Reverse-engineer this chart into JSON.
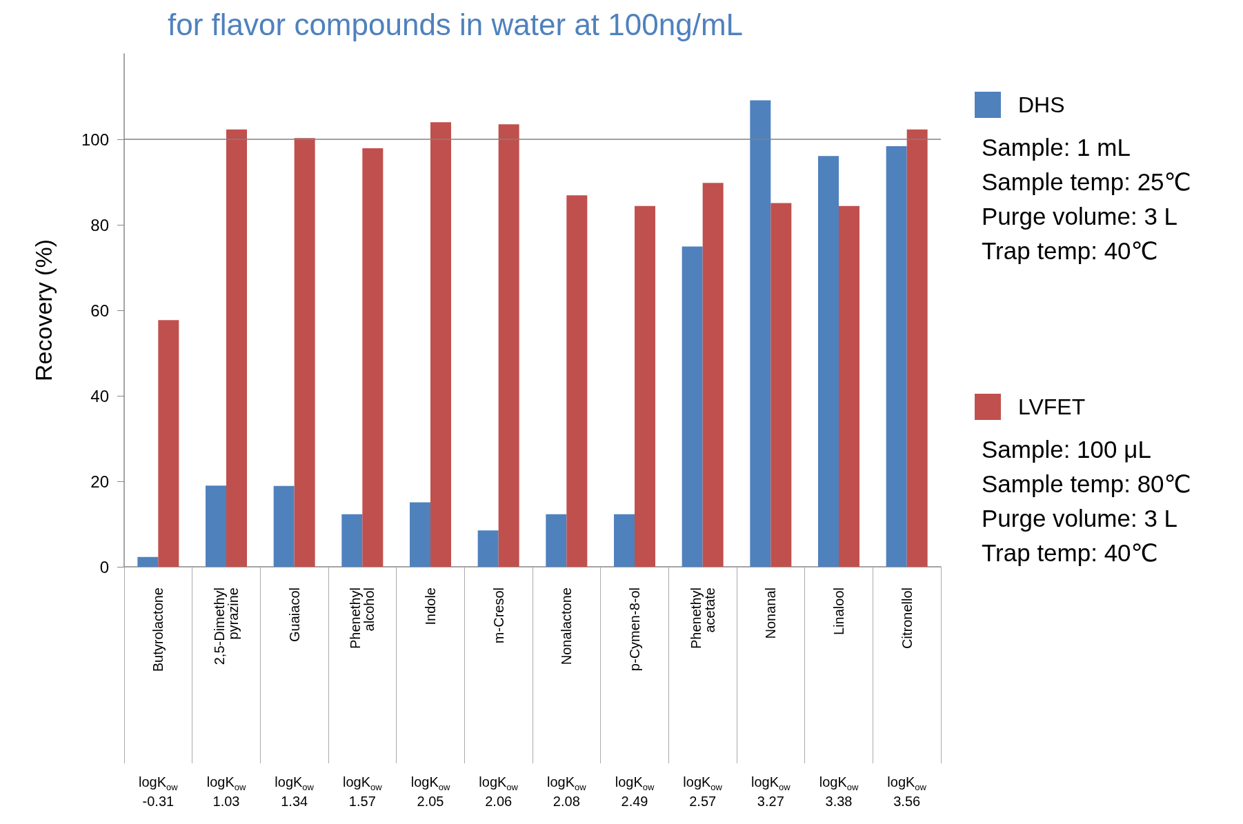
{
  "chart_data": {
    "type": "bar",
    "title": "for flavor compounds in water at 100ng/mL",
    "ylabel": "Recovery (%)",
    "categories": [
      "Butyrolactone",
      "2,5-Dimethyl pyrazine",
      "Guaiacol",
      "Phenethyl alcohol",
      "Indole",
      "m-Cresol",
      "Nonalactone",
      "p-Cymen-8-ol",
      "Phenethyl acetate",
      "Nonanal",
      "Linalool",
      "Citronellol"
    ],
    "series": [
      {
        "name": "DHS",
        "color": "#4f81bd",
        "values": [
          2.3,
          19,
          18.9,
          12.3,
          15.1,
          8.5,
          12.3,
          12.3,
          74.9,
          109.1,
          96.1,
          98.4
        ]
      },
      {
        "name": "LVFET",
        "color": "#c0504d",
        "values": [
          57.7,
          102.3,
          100.3,
          97.9,
          104,
          103.5,
          86.9,
          84.4,
          89.8,
          85.1,
          84.4,
          102.3
        ]
      }
    ],
    "ylim": [
      0,
      120
    ],
    "yticks": [
      0,
      20,
      40,
      60,
      80,
      100
    ],
    "grid": false,
    "legend": "right",
    "ref_lines": [
      {
        "axis": "y",
        "value": 100,
        "color": "#808080"
      }
    ],
    "annotations": [
      "Sample: 1 mL\nSample temp: 25℃\nPurge volume: 3 L\nTrap temp: 40℃",
      "Sample: 100 μL\nSample temp: 80℃\nPurge volume: 3 L\nTrap temp: 40℃",
      "logK$_{ow}$\n-0.31",
      "logK$_{ow}$\n1.03",
      "logK$_{ow}$\n1.34",
      "logK$_{ow}$\n1.57",
      "logK$_{ow}$\n2.05",
      "logK$_{ow}$\n2.06",
      "logK$_{ow}$\n2.08",
      "logK$_{ow}$\n2.49",
      "logK$_{ow}$\n2.57",
      "logK$_{ow}$\n3.27",
      "logK$_{ow}$\n3.38",
      "logK$_{ow}$\n3.56"
    ]
  }
}
